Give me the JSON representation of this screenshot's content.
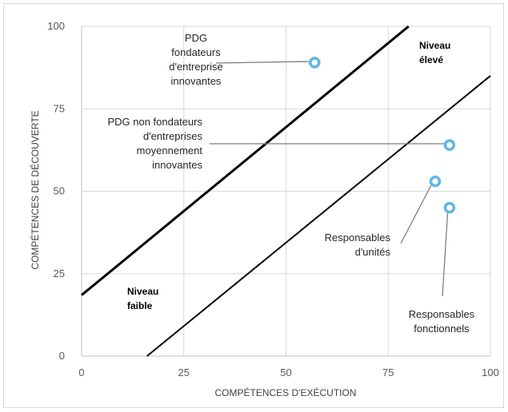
{
  "chart_data": {
    "type": "scatter",
    "title": "",
    "xlabel": "COMPÉTENCES D'EXÉCUTION",
    "ylabel": "COMPÉTENCES DE DÉCOUVERTE",
    "xlim": [
      0,
      100
    ],
    "ylim": [
      0,
      100
    ],
    "x_ticks": [
      "0",
      "25",
      "50",
      "75",
      "100"
    ],
    "y_ticks": [
      "0",
      "25",
      "50",
      "75",
      "100"
    ],
    "grid": true,
    "legend": "none",
    "colors": {
      "marker": "#5bb8e6",
      "grid": "#d9d9d9",
      "boundary": "#000000",
      "leader": "#7f7f7f"
    },
    "boundaries": [
      {
        "name": "upper",
        "x": [
          0,
          80
        ],
        "y": [
          18.5,
          100
        ]
      },
      {
        "name": "lower",
        "x": [
          16,
          100
        ],
        "y": [
          0,
          85
        ]
      }
    ],
    "points": [
      {
        "label": "PDG fondateurs d'entreprise innovantes",
        "x": 57,
        "y": 89
      },
      {
        "label": "PDG non fondateurs d'entreprises moyennement innovantes",
        "x": 90,
        "y": 64
      },
      {
        "label": "Responsables d'unités",
        "x": 86.5,
        "y": 53
      },
      {
        "label": "Responsables fonctionnels",
        "x": 90,
        "y": 45
      }
    ],
    "annotations": [
      {
        "lines": [
          "PDG",
          "fondateurs",
          "d'entreprise",
          "innovantes"
        ],
        "point": 0
      },
      {
        "lines": [
          "PDG non fondateurs",
          "d'entreprises",
          "moyennement",
          "innovantes"
        ],
        "point": 1
      },
      {
        "lines": [
          "Responsables",
          "d'unités"
        ],
        "point": 2
      },
      {
        "lines": [
          "Responsables",
          "fonctionnels"
        ],
        "point": 3
      }
    ],
    "zones": [
      {
        "lines": [
          "Niveau",
          "élevé"
        ]
      },
      {
        "lines": [
          "Niveau",
          "faible"
        ]
      }
    ]
  }
}
